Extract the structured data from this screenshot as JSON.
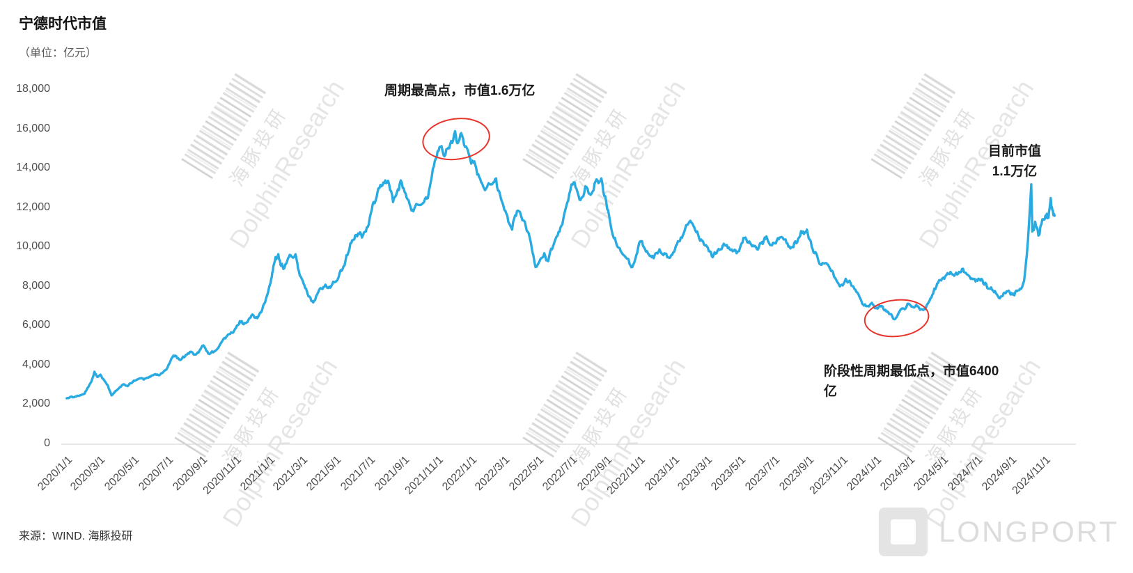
{
  "page": {
    "title": "宁德时代市值",
    "unit_label": "（单位：亿元）",
    "source": "来源：WIND. 海豚投研"
  },
  "colors": {
    "line": "#29ABE2",
    "annotation_circle": "#E8352B",
    "axis_text": "#4D4D4D",
    "axis_line": "#D9D9D9"
  },
  "watermark": {
    "cn": "海豚投研",
    "en": "DolphinResearch"
  },
  "footer_logo": {
    "text": "LONGPORT"
  },
  "annotations": {
    "peak": {
      "label": "周期最高点，市值1.6万亿",
      "date": "2021/12/5",
      "value": 15500
    },
    "trough": {
      "label_line1": "阶段性周期最低点，市值6400",
      "label_line2": "亿",
      "date": "2024/2/8",
      "value": 6400
    },
    "current": {
      "label_line1": "目前市值",
      "label_line2": "1.1万亿"
    }
  },
  "chart_data": {
    "type": "line",
    "title": "宁德时代市值",
    "ylabel": "亿元",
    "ylim": [
      0,
      18000
    ],
    "ytick_step": 2000,
    "grid": false,
    "legend": "none",
    "ytick_labels": [
      "0",
      "2,000",
      "4,000",
      "6,000",
      "8,000",
      "10,000",
      "12,000",
      "14,000",
      "16,000",
      "18,000"
    ],
    "xtick_labels": [
      "2020/1/1",
      "2020/3/1",
      "2020/5/1",
      "2020/7/1",
      "2020/9/1",
      "2020/11/1",
      "2021/1/1",
      "2021/3/1",
      "2021/5/1",
      "2021/7/1",
      "2021/9/1",
      "2021/11/1",
      "2022/1/1",
      "2022/3/1",
      "2022/5/1",
      "2022/7/1",
      "2022/9/1",
      "2022/11/1",
      "2023/1/1",
      "2023/3/1",
      "2023/5/1",
      "2023/7/1",
      "2023/9/1",
      "2023/11/1",
      "2024/1/1",
      "2024/3/1",
      "2024/5/1",
      "2024/7/1",
      "2024/9/1",
      "2024/11/1"
    ],
    "x_range": [
      "2020/1/1",
      "2024/11/1"
    ],
    "series": [
      {
        "name": "宁德时代市值",
        "points": [
          [
            "2020/1/2",
            2330
          ],
          [
            "2020/1/8",
            2400
          ],
          [
            "2020/1/14",
            2380
          ],
          [
            "2020/1/21",
            2460
          ],
          [
            "2020/2/3",
            2560
          ],
          [
            "2020/2/10",
            2900
          ],
          [
            "2020/2/17",
            3300
          ],
          [
            "2020/2/21",
            3680
          ],
          [
            "2020/2/26",
            3420
          ],
          [
            "2020/3/3",
            3530
          ],
          [
            "2020/3/9",
            3280
          ],
          [
            "2020/3/16",
            3000
          ],
          [
            "2020/3/23",
            2480
          ],
          [
            "2020/3/30",
            2700
          ],
          [
            "2020/4/7",
            2900
          ],
          [
            "2020/4/14",
            3050
          ],
          [
            "2020/4/21",
            2950
          ],
          [
            "2020/4/28",
            3100
          ],
          [
            "2020/5/6",
            3250
          ],
          [
            "2020/5/13",
            3350
          ],
          [
            "2020/5/20",
            3280
          ],
          [
            "2020/5/27",
            3380
          ],
          [
            "2020/6/3",
            3480
          ],
          [
            "2020/6/10",
            3560
          ],
          [
            "2020/6/17",
            3500
          ],
          [
            "2020/6/24",
            3650
          ],
          [
            "2020/7/2",
            3900
          ],
          [
            "2020/7/9",
            4350
          ],
          [
            "2020/7/16",
            4500
          ],
          [
            "2020/7/23",
            4300
          ],
          [
            "2020/7/30",
            4450
          ],
          [
            "2020/8/6",
            4550
          ],
          [
            "2020/8/13",
            4700
          ],
          [
            "2020/8/20",
            4550
          ],
          [
            "2020/8/27",
            4650
          ],
          [
            "2020/9/3",
            5000
          ],
          [
            "2020/9/10",
            4750
          ],
          [
            "2020/9/17",
            4600
          ],
          [
            "2020/9/24",
            4700
          ],
          [
            "2020/10/9",
            5250
          ],
          [
            "2020/10/16",
            5450
          ],
          [
            "2020/10/23",
            5600
          ],
          [
            "2020/10/30",
            5750
          ],
          [
            "2020/11/6",
            6050
          ],
          [
            "2020/11/13",
            6250
          ],
          [
            "2020/11/20",
            6150
          ],
          [
            "2020/11/27",
            6400
          ],
          [
            "2020/12/4",
            6550
          ],
          [
            "2020/12/11",
            6400
          ],
          [
            "2020/12/18",
            6700
          ],
          [
            "2020/12/25",
            7200
          ],
          [
            "2021/1/4",
            8200
          ],
          [
            "2021/1/8",
            8800
          ],
          [
            "2021/1/13",
            9500
          ],
          [
            "2021/1/18",
            9650
          ],
          [
            "2021/1/22",
            9100
          ],
          [
            "2021/1/27",
            8900
          ],
          [
            "2021/2/3",
            9300
          ],
          [
            "2021/2/9",
            9600
          ],
          [
            "2021/2/18",
            9650
          ],
          [
            "2021/2/24",
            8800
          ],
          [
            "2021/3/3",
            8300
          ],
          [
            "2021/3/9",
            7900
          ],
          [
            "2021/3/15",
            7500
          ],
          [
            "2021/3/22",
            7200
          ],
          [
            "2021/3/29",
            7600
          ],
          [
            "2021/4/6",
            7900
          ],
          [
            "2021/4/13",
            8100
          ],
          [
            "2021/4/20",
            8000
          ],
          [
            "2021/4/27",
            8250
          ],
          [
            "2021/5/7",
            8500
          ],
          [
            "2021/5/14",
            8900
          ],
          [
            "2021/5/21",
            9600
          ],
          [
            "2021/5/28",
            10200
          ],
          [
            "2021/6/4",
            10400
          ],
          [
            "2021/6/11",
            10700
          ],
          [
            "2021/6/18",
            10500
          ],
          [
            "2021/6/25",
            10800
          ],
          [
            "2021/7/2",
            11500
          ],
          [
            "2021/7/9",
            12300
          ],
          [
            "2021/7/16",
            12800
          ],
          [
            "2021/7/23",
            13100
          ],
          [
            "2021/7/30",
            13400
          ],
          [
            "2021/8/6",
            13200
          ],
          [
            "2021/8/13",
            12300
          ],
          [
            "2021/8/20",
            12800
          ],
          [
            "2021/8/27",
            13400
          ],
          [
            "2021/9/3",
            12800
          ],
          [
            "2021/9/10",
            12400
          ],
          [
            "2021/9/17",
            11900
          ],
          [
            "2021/9/24",
            12200
          ],
          [
            "2021/10/8",
            12300
          ],
          [
            "2021/10/15",
            12500
          ],
          [
            "2021/10/22",
            13600
          ],
          [
            "2021/10/29",
            14500
          ],
          [
            "2021/11/5",
            15100
          ],
          [
            "2021/11/12",
            14700
          ],
          [
            "2021/11/19",
            15000
          ],
          [
            "2021/11/26",
            15400
          ],
          [
            "2021/12/3",
            15900
          ],
          [
            "2021/12/8",
            15300
          ],
          [
            "2021/12/14",
            15800
          ],
          [
            "2021/12/21",
            15100
          ],
          [
            "2021/12/28",
            14700
          ],
          [
            "2022/1/5",
            14300
          ],
          [
            "2022/1/12",
            13700
          ],
          [
            "2022/1/19",
            13300
          ],
          [
            "2022/1/26",
            12900
          ],
          [
            "2022/2/8",
            13200
          ],
          [
            "2022/2/15",
            13500
          ],
          [
            "2022/2/22",
            12700
          ],
          [
            "2022/3/2",
            11900
          ],
          [
            "2022/3/9",
            11300
          ],
          [
            "2022/3/16",
            10900
          ],
          [
            "2022/3/23",
            11600
          ],
          [
            "2022/3/30",
            11800
          ],
          [
            "2022/4/8",
            11300
          ],
          [
            "2022/4/15",
            10700
          ],
          [
            "2022/4/22",
            9700
          ],
          [
            "2022/4/27",
            9000
          ],
          [
            "2022/5/6",
            9400
          ],
          [
            "2022/5/13",
            9700
          ],
          [
            "2022/5/20",
            9300
          ],
          [
            "2022/5/27",
            9900
          ],
          [
            "2022/6/6",
            10600
          ],
          [
            "2022/6/13",
            11100
          ],
          [
            "2022/6/20",
            11900
          ],
          [
            "2022/6/27",
            12700
          ],
          [
            "2022/7/5",
            13300
          ],
          [
            "2022/7/12",
            12800
          ],
          [
            "2022/7/19",
            12500
          ],
          [
            "2022/7/26",
            13100
          ],
          [
            "2022/8/3",
            12700
          ],
          [
            "2022/8/10",
            12900
          ],
          [
            "2022/8/17",
            13400
          ],
          [
            "2022/8/24",
            13500
          ],
          [
            "2022/8/31",
            12600
          ],
          [
            "2022/9/7",
            11600
          ],
          [
            "2022/9/14",
            10600
          ],
          [
            "2022/9/21",
            10100
          ],
          [
            "2022/9/28",
            9800
          ],
          [
            "2022/10/12",
            9400
          ],
          [
            "2022/10/19",
            9000
          ],
          [
            "2022/10/26",
            9600
          ],
          [
            "2022/11/2",
            10300
          ],
          [
            "2022/11/9",
            10000
          ],
          [
            "2022/11/16",
            9700
          ],
          [
            "2022/11/23",
            9500
          ],
          [
            "2022/11/30",
            9700
          ],
          [
            "2022/12/7",
            9900
          ],
          [
            "2022/12/14",
            9600
          ],
          [
            "2022/12/21",
            9500
          ],
          [
            "2022/12/28",
            9600
          ],
          [
            "2023/1/4",
            9900
          ],
          [
            "2023/1/11",
            10300
          ],
          [
            "2023/1/18",
            10600
          ],
          [
            "2023/1/30",
            11300
          ],
          [
            "2023/2/6",
            11100
          ],
          [
            "2023/2/13",
            10800
          ],
          [
            "2023/2/20",
            10400
          ],
          [
            "2023/2/27",
            10100
          ],
          [
            "2023/3/6",
            9800
          ],
          [
            "2023/3/13",
            9500
          ],
          [
            "2023/3/20",
            9700
          ],
          [
            "2023/3/27",
            9900
          ],
          [
            "2023/4/4",
            10100
          ],
          [
            "2023/4/11",
            10000
          ],
          [
            "2023/4/18",
            9800
          ],
          [
            "2023/4/25",
            9700
          ],
          [
            "2023/5/4",
            10200
          ],
          [
            "2023/5/11",
            10500
          ],
          [
            "2023/5/18",
            10300
          ],
          [
            "2023/5/25",
            10100
          ],
          [
            "2023/6/1",
            9900
          ],
          [
            "2023/6/8",
            10200
          ],
          [
            "2023/6/15",
            10500
          ],
          [
            "2023/6/21",
            10300
          ],
          [
            "2023/6/28",
            10100
          ],
          [
            "2023/7/5",
            10200
          ],
          [
            "2023/7/12",
            10500
          ],
          [
            "2023/7/19",
            10400
          ],
          [
            "2023/7/26",
            10200
          ],
          [
            "2023/8/2",
            10000
          ],
          [
            "2023/8/9",
            10300
          ],
          [
            "2023/8/16",
            10500
          ],
          [
            "2023/8/23",
            10800
          ],
          [
            "2023/8/30",
            10900
          ],
          [
            "2023/9/6",
            10300
          ],
          [
            "2023/9/13",
            9700
          ],
          [
            "2023/9/20",
            9300
          ],
          [
            "2023/9/27",
            9200
          ],
          [
            "2023/10/11",
            8900
          ],
          [
            "2023/10/18",
            8500
          ],
          [
            "2023/10/25",
            8200
          ],
          [
            "2023/11/1",
            8100
          ],
          [
            "2023/11/8",
            8400
          ],
          [
            "2023/11/15",
            8300
          ],
          [
            "2023/11/22",
            8000
          ],
          [
            "2023/11/29",
            7700
          ],
          [
            "2023/12/6",
            7300
          ],
          [
            "2023/12/13",
            7100
          ],
          [
            "2023/12/20",
            7000
          ],
          [
            "2023/12/27",
            7100
          ],
          [
            "2024/1/3",
            6900
          ],
          [
            "2024/1/10",
            7000
          ],
          [
            "2024/1/17",
            6800
          ],
          [
            "2024/1/24",
            6700
          ],
          [
            "2024/1/31",
            6500
          ],
          [
            "2024/2/5",
            6350
          ],
          [
            "2024/2/19",
            6900
          ],
          [
            "2024/2/26",
            7000
          ],
          [
            "2024/3/4",
            7050
          ],
          [
            "2024/3/11",
            6950
          ],
          [
            "2024/3/18",
            7000
          ],
          [
            "2024/3/25",
            6850
          ],
          [
            "2024/4/1",
            6950
          ],
          [
            "2024/4/9",
            7400
          ],
          [
            "2024/4/16",
            7900
          ],
          [
            "2024/4/23",
            8200
          ],
          [
            "2024/4/30",
            8400
          ],
          [
            "2024/5/8",
            8600
          ],
          [
            "2024/5/15",
            8750
          ],
          [
            "2024/5/22",
            8550
          ],
          [
            "2024/5/29",
            8650
          ],
          [
            "2024/6/5",
            8900
          ],
          [
            "2024/6/12",
            8700
          ],
          [
            "2024/6/19",
            8500
          ],
          [
            "2024/6/26",
            8400
          ],
          [
            "2024/7/3",
            8300
          ],
          [
            "2024/7/10",
            8400
          ],
          [
            "2024/7/17",
            8200
          ],
          [
            "2024/7/24",
            7900
          ],
          [
            "2024/7/31",
            7800
          ],
          [
            "2024/8/7",
            7600
          ],
          [
            "2024/8/14",
            7500
          ],
          [
            "2024/8/21",
            7700
          ],
          [
            "2024/8/28",
            7800
          ],
          [
            "2024/9/4",
            7600
          ],
          [
            "2024/9/11",
            7800
          ],
          [
            "2024/9/18",
            7900
          ],
          [
            "2024/9/25",
            8300
          ],
          [
            "2024/9/30",
            9600
          ],
          [
            "2024/10/8",
            13200
          ],
          [
            "2024/10/10",
            10800
          ],
          [
            "2024/10/15",
            11300
          ],
          [
            "2024/10/21",
            10600
          ],
          [
            "2024/10/25",
            11100
          ],
          [
            "2024/10/31",
            11400
          ],
          [
            "2024/11/5",
            11700
          ],
          [
            "2024/11/8",
            11500
          ],
          [
            "2024/11/12",
            12500
          ],
          [
            "2024/11/15",
            11900
          ],
          [
            "2024/11/19",
            11600
          ]
        ]
      }
    ]
  }
}
